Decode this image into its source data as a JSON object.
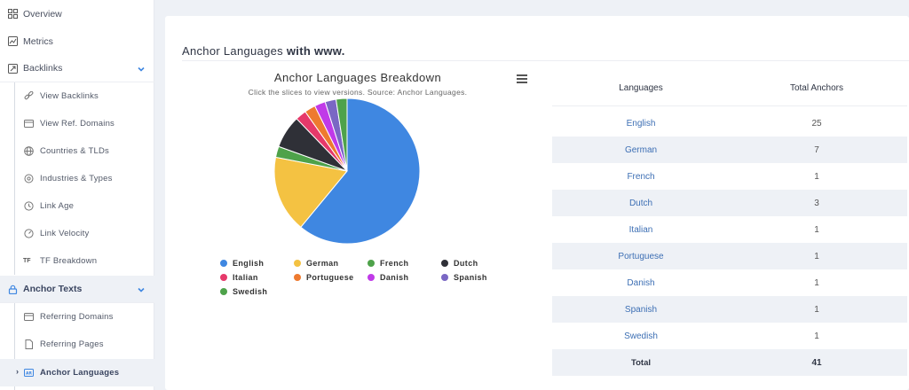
{
  "sidebar": {
    "items": [
      {
        "label": "Overview",
        "icon": "grid-icon"
      },
      {
        "label": "Metrics",
        "icon": "chart-icon"
      },
      {
        "label": "Backlinks",
        "icon": "backlink-icon"
      },
      {
        "label": "View Backlinks",
        "icon": "link-icon"
      },
      {
        "label": "View Ref. Domains",
        "icon": "domains-icon"
      },
      {
        "label": "Countries & TLDs",
        "icon": "globe-icon"
      },
      {
        "label": "Industries & Types",
        "icon": "industry-icon"
      },
      {
        "label": "Link Age",
        "icon": "clock-icon"
      },
      {
        "label": "Link Velocity",
        "icon": "speed-icon"
      },
      {
        "label": "TF Breakdown",
        "icon": "tf-icon",
        "badge": "TF"
      },
      {
        "label": "Anchor Texts",
        "icon": "lock-icon"
      },
      {
        "label": "Referring Domains",
        "icon": "domains-icon"
      },
      {
        "label": "Referring Pages",
        "icon": "page-icon"
      },
      {
        "label": "Anchor Languages",
        "icon": "language-icon"
      }
    ]
  },
  "card": {
    "title_prefix": "Anchor Languages",
    "title_bold": "with www."
  },
  "chart_data": {
    "type": "pie",
    "title": "Anchor Languages Breakdown",
    "subtitle": "Click the slices to view versions. Source: Anchor Languages.",
    "legend_position": "bottom",
    "slices": [
      {
        "name": "English",
        "value": 25,
        "color": "#3f87e1"
      },
      {
        "name": "German",
        "value": 7,
        "color": "#f4c242"
      },
      {
        "name": "French",
        "value": 1,
        "color": "#4ea24a"
      },
      {
        "name": "Dutch",
        "value": 3,
        "color": "#2f3037"
      },
      {
        "name": "Italian",
        "value": 1,
        "color": "#e6396a"
      },
      {
        "name": "Portuguese",
        "value": 1,
        "color": "#ee7a2f"
      },
      {
        "name": "Danish",
        "value": 1,
        "color": "#c03ae8"
      },
      {
        "name": "Spanish",
        "value": 1,
        "color": "#7a67c4"
      },
      {
        "name": "Swedish",
        "value": 1,
        "color": "#4ea24a"
      }
    ]
  },
  "table": {
    "headers": [
      "Languages",
      "Total Anchors"
    ],
    "rows": [
      [
        "English",
        "25"
      ],
      [
        "German",
        "7"
      ],
      [
        "French",
        "1"
      ],
      [
        "Dutch",
        "3"
      ],
      [
        "Italian",
        "1"
      ],
      [
        "Portuguese",
        "1"
      ],
      [
        "Danish",
        "1"
      ],
      [
        "Spanish",
        "1"
      ],
      [
        "Swedish",
        "1"
      ]
    ],
    "total_label": "Total",
    "total_value": "41"
  }
}
